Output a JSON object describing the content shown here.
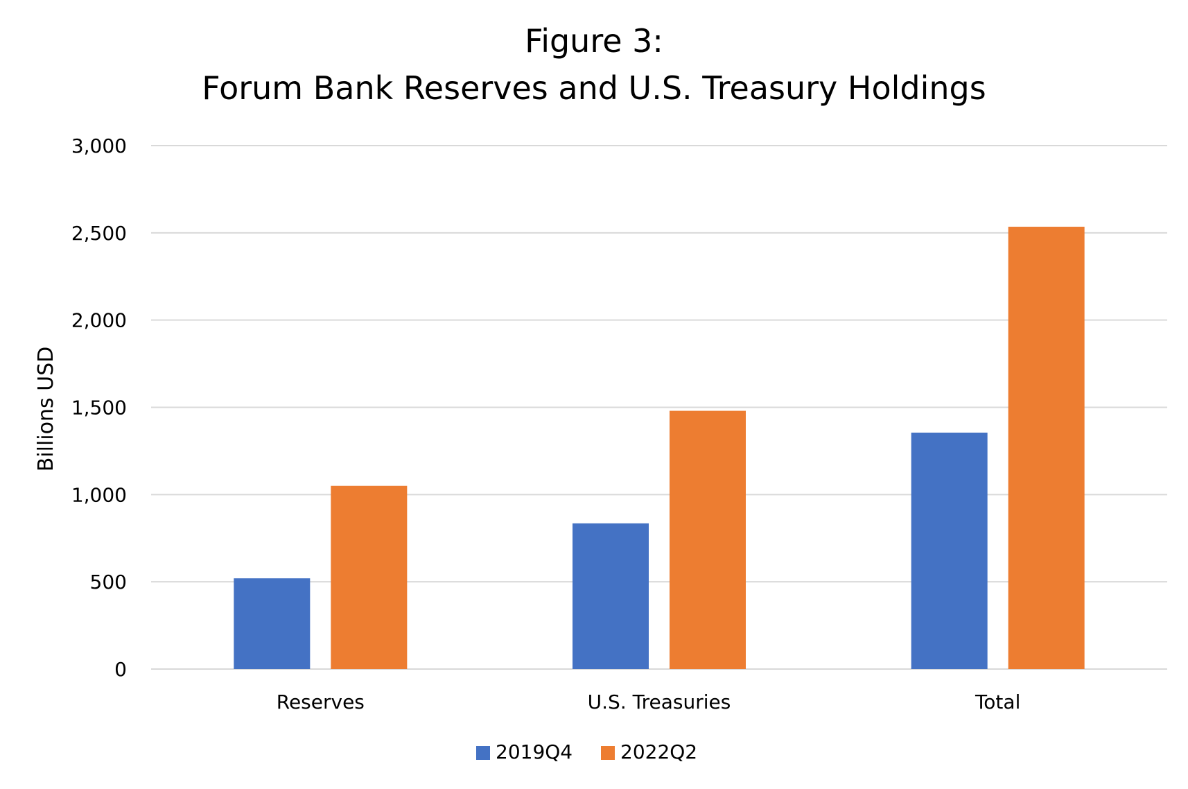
{
  "chart_data": {
    "type": "bar",
    "title": "Figure 3:",
    "subtitle": "Forum Bank Reserves and U.S. Treasury Holdings",
    "xlabel": "",
    "ylabel": "Billions USD",
    "ylim": [
      0,
      3000
    ],
    "yticks": [
      0,
      500,
      1000,
      1500,
      2000,
      2500,
      3000
    ],
    "ytick_labels": [
      "0",
      "500",
      "1,000",
      "1,500",
      "2,000",
      "2,500",
      "3,000"
    ],
    "grid": true,
    "legend_position": "bottom",
    "categories": [
      "Reserves",
      "U.S. Treasuries",
      "Total"
    ],
    "series": [
      {
        "name": "2019Q4",
        "color": "#4472c4",
        "values": [
          520,
          835,
          1355
        ]
      },
      {
        "name": "2022Q2",
        "color": "#ed7d31",
        "values": [
          1050,
          1480,
          2535
        ]
      }
    ]
  }
}
